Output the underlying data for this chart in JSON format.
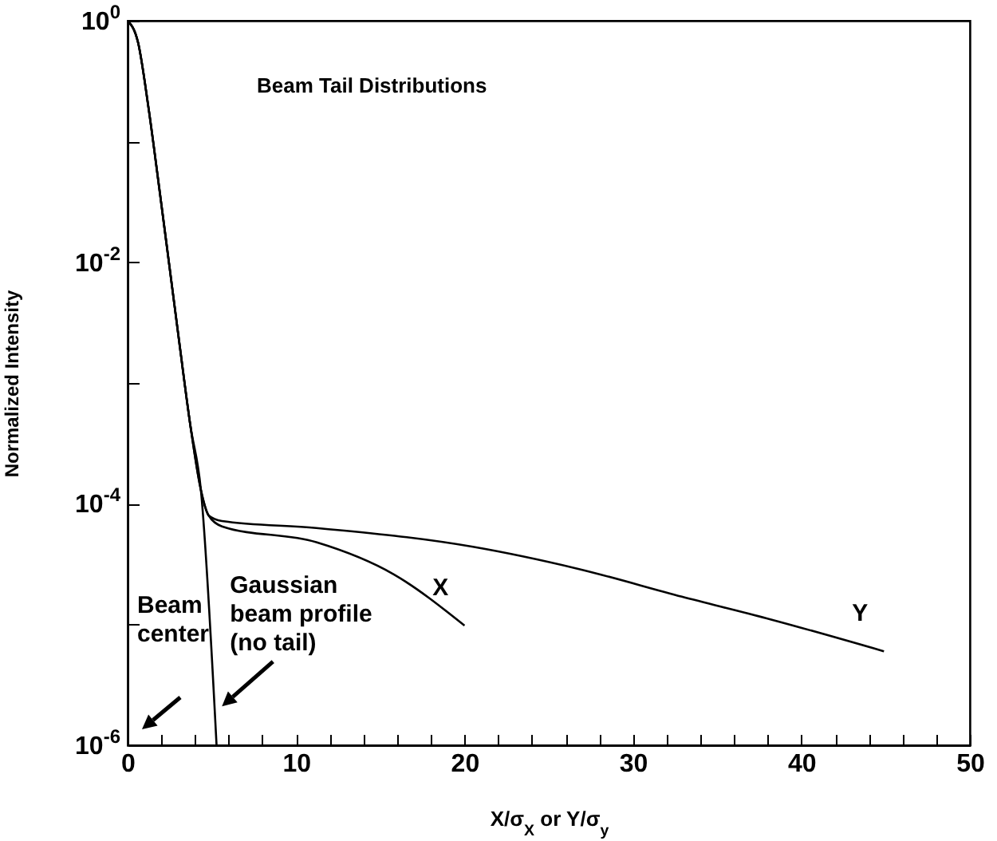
{
  "chart_data": {
    "type": "line",
    "title": "Beam Tail Distributions",
    "xlabel": "X/σ$_{X}$  or  Y/σ$_{y}$",
    "ylabel": "Normalized Intensity",
    "xlim": [
      0,
      50
    ],
    "xticks": [
      0,
      {
        "value": 2,
        "label": null
      },
      {
        "value": 4,
        "label": null
      },
      {
        "value": 6,
        "label": null
      },
      {
        "value": 8,
        "label": null
      },
      10,
      {
        "value": 12,
        "label": null
      },
      {
        "value": 14,
        "label": null
      },
      {
        "value": 16,
        "label": null
      },
      {
        "value": 18,
        "label": null
      },
      20,
      {
        "value": 22,
        "label": null
      },
      {
        "value": 24,
        "label": null
      },
      {
        "value": 26,
        "label": null
      },
      {
        "value": 28,
        "label": null
      },
      30,
      {
        "value": 32,
        "label": null
      },
      {
        "value": 34,
        "label": null
      },
      {
        "value": 36,
        "label": null
      },
      {
        "value": 38,
        "label": null
      },
      40,
      {
        "value": 42,
        "label": null
      },
      {
        "value": 44,
        "label": null
      },
      {
        "value": 46,
        "label": null
      },
      {
        "value": 48,
        "label": null
      },
      50
    ],
    "ylim": [
      1e-06,
      1
    ],
    "yticks": [
      {
        "value": 1,
        "label": "10$^{0}$"
      },
      {
        "value": 0.1,
        "label": null
      },
      {
        "value": 0.01,
        "label": "10$^{-2}$"
      },
      {
        "value": 0.001,
        "label": null
      },
      {
        "value": 0.0001,
        "label": "10$^{-4}$"
      },
      {
        "value": 1e-05,
        "label": null
      },
      {
        "value": 1e-06,
        "label": "10$^{-6}$"
      }
    ],
    "log": "y",
    "grid": false,
    "marker": "none",
    "line_style": "solid",
    "series": [
      {
        "name": "Y",
        "color": "#000000",
        "x": [
          0,
          0.62,
          1.24,
          1.86,
          2.48,
          3.1,
          3.72,
          4.35,
          4.81,
          5.6,
          11.2,
          20.5,
          26.7,
          32.9,
          38.2,
          44.9
        ],
        "values": [
          1,
          0.66,
          0.19,
          0.043,
          0.0093,
          0.002,
          0.00045,
          0.00013,
          8e-05,
          7.2e-05,
          6.3e-05,
          4.4e-05,
          2.9e-05,
          1.7e-05,
          1.1e-05,
          6e-06
        ]
      },
      {
        "name": "X",
        "color": "#000000",
        "x": [
          0,
          0.62,
          1.24,
          1.86,
          2.48,
          3.1,
          3.72,
          4.35,
          4.81,
          5.6,
          11.2,
          15.8,
          20
        ],
        "values": [
          1,
          0.66,
          0.19,
          0.043,
          0.0093,
          0.002,
          0.00045,
          0.00013,
          8e-05,
          6.5e-05,
          4.8e-05,
          2.6e-05,
          9.8e-06
        ]
      },
      {
        "color": "#000000",
        "x": [
          0,
          0.62,
          1.24,
          1.86,
          2.48,
          3.1,
          3.72,
          4.35,
          5.28
        ],
        "values": [
          1,
          0.66,
          0.19,
          0.043,
          0.0093,
          0.002,
          0.00045,
          0.00013,
          1e-06
        ]
      }
    ],
    "annotations": [
      {
        "text": "Gaussian\nbeam profile\n(no tail)",
        "x": 5.6,
        "y": 2.1e-06
      },
      "Beam\ncenter"
    ]
  }
}
